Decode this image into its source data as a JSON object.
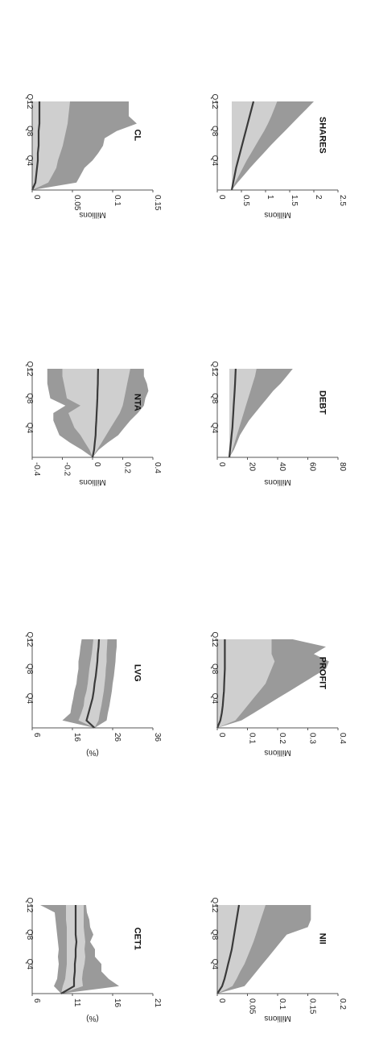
{
  "colors": {
    "outer_band": "#9a9a9a",
    "inner_band": "#cfcfcf",
    "median": "#3a3a3a",
    "axis": "#555555"
  },
  "chart_data": [
    {
      "type": "area",
      "title": "CET1",
      "ylabel": "(%)",
      "ylim": [
        6,
        21
      ],
      "yticks": [
        "6",
        "11",
        "16",
        "21"
      ],
      "xticks": [
        "Q4",
        "Q8",
        "Q12"
      ],
      "x": [
        0,
        1,
        2,
        3,
        4,
        5,
        6,
        7,
        8,
        9,
        10,
        11,
        12
      ],
      "outer_low": [
        9.6,
        8.7,
        9.1,
        9.2,
        9.3,
        9.2,
        9.3,
        9.2,
        9.1,
        9.0,
        8.9,
        8.8,
        7.0
      ],
      "inner_low": [
        9.6,
        9.8,
        10.1,
        10.2,
        10.3,
        10.3,
        10.3,
        10.3,
        10.3,
        10.3,
        10.2,
        10.2,
        10.2
      ],
      "median": [
        9.6,
        11.2,
        11.2,
        11.3,
        11.3,
        11.4,
        11.4,
        11.5,
        11.4,
        11.4,
        11.4,
        11.4,
        11.4
      ],
      "inner_high": [
        9.6,
        12.3,
        12.2,
        12.3,
        12.5,
        12.6,
        12.5,
        12.6,
        12.5,
        12.4,
        12.4,
        12.4,
        12.4
      ],
      "outer_high": [
        9.6,
        16.8,
        15.5,
        14.6,
        14.6,
        13.8,
        13.8,
        13.2,
        13.6,
        13.2,
        13.1,
        12.8,
        12.7
      ]
    },
    {
      "type": "area",
      "title": "LVG",
      "ylabel": "(%)",
      "ylim": [
        6,
        36
      ],
      "yticks": [
        "6",
        "16",
        "26",
        "36"
      ],
      "xticks": [
        "Q4",
        "Q8",
        "Q12"
      ],
      "x": [
        0,
        1,
        2,
        3,
        4,
        5,
        6,
        7,
        8,
        9,
        10,
        11,
        12
      ],
      "outer_low": [
        21.5,
        13.5,
        15.5,
        15.8,
        16.2,
        16.5,
        17.0,
        17.2,
        17.5,
        17.5,
        17.8,
        18.0,
        18.3
      ],
      "inner_low": [
        21.5,
        17.5,
        18.2,
        18.8,
        19.0,
        19.5,
        19.8,
        20.0,
        20.2,
        20.5,
        20.8,
        21.0,
        21.2
      ],
      "median": [
        21.5,
        19.5,
        20.0,
        20.5,
        21.0,
        21.3,
        21.5,
        21.8,
        22.0,
        22.2,
        22.3,
        22.5,
        22.6
      ],
      "inner_high": [
        21.5,
        22.5,
        22.8,
        23.2,
        23.5,
        23.8,
        24.0,
        24.2,
        24.3,
        24.5,
        24.5,
        24.6,
        24.7
      ],
      "outer_high": [
        21.5,
        24.5,
        24.8,
        25.2,
        25.5,
        25.8,
        26.0,
        26.3,
        26.5,
        26.7,
        26.8,
        27.0,
        27.0
      ]
    },
    {
      "type": "area",
      "title": "NTA",
      "ylabel": "Millions",
      "ylim": [
        -0.4,
        0.4
      ],
      "yticks": [
        "-0.4",
        "-0.2",
        "0",
        "0.2",
        "0.4"
      ],
      "xticks": [
        "Q4",
        "Q8",
        "Q12"
      ],
      "x": [
        0,
        1,
        2,
        3,
        4,
        5,
        6,
        7,
        8,
        9,
        10,
        11,
        12
      ],
      "outer_low": [
        0,
        -0.07,
        -0.15,
        -0.22,
        -0.24,
        -0.26,
        -0.26,
        -0.18,
        -0.28,
        -0.29,
        -0.3,
        -0.3,
        -0.3
      ],
      "inner_low": [
        0,
        -0.02,
        -0.05,
        -0.08,
        -0.12,
        -0.14,
        -0.16,
        -0.08,
        -0.17,
        -0.18,
        -0.19,
        -0.2,
        -0.2
      ],
      "median": [
        0,
        0.01,
        0.015,
        0.02,
        0.022,
        0.025,
        0.027,
        0.03,
        0.032,
        0.033,
        0.035,
        0.036,
        0.037
      ],
      "inner_high": [
        0,
        0.03,
        0.06,
        0.09,
        0.12,
        0.15,
        0.18,
        0.2,
        0.21,
        0.22,
        0.23,
        0.24,
        0.25
      ],
      "outer_high": [
        0,
        0.04,
        0.1,
        0.17,
        0.21,
        0.25,
        0.3,
        0.34,
        0.35,
        0.37,
        0.36,
        0.34,
        0.34
      ]
    },
    {
      "type": "area",
      "title": "CL",
      "ylabel": "Millions",
      "ylim": [
        0,
        0.15
      ],
      "yticks": [
        "0",
        "0.05",
        "0.1",
        "0.15"
      ],
      "xticks": [
        "Q4",
        "Q8",
        "Q12"
      ],
      "x": [
        0,
        1,
        2,
        3,
        4,
        5,
        6,
        7,
        8,
        9,
        10,
        11,
        12
      ],
      "outer_low": [
        0,
        0,
        0,
        0,
        0,
        0,
        0,
        0,
        0,
        0,
        0,
        0,
        0
      ],
      "inner_low": [
        0,
        0,
        0,
        0,
        0,
        0,
        0,
        0,
        0,
        0,
        0,
        0,
        0
      ],
      "median": [
        0,
        0.004,
        0.005,
        0.006,
        0.007,
        0.007,
        0.008,
        0.008,
        0.008,
        0.009,
        0.009,
        0.009,
        0.009
      ],
      "inner_high": [
        0,
        0.02,
        0.025,
        0.03,
        0.032,
        0.035,
        0.038,
        0.04,
        0.042,
        0.044,
        0.045,
        0.046,
        0.047
      ],
      "outer_high": [
        0,
        0.055,
        0.06,
        0.065,
        0.075,
        0.082,
        0.088,
        0.09,
        0.105,
        0.13,
        0.12,
        0.12,
        0.12
      ]
    },
    {
      "type": "area",
      "title": "NII",
      "ylabel": "Millions",
      "ylim": [
        0,
        0.2
      ],
      "yticks": [
        "0",
        "0.05",
        "0.1",
        "0.15",
        "0.2"
      ],
      "xticks": [
        "Q4",
        "Q8",
        "Q12"
      ],
      "x": [
        0,
        1,
        2,
        3,
        4,
        5,
        6,
        7,
        8,
        9,
        10,
        11,
        12
      ],
      "outer_low": [
        0,
        0,
        0,
        0,
        0,
        0,
        0,
        0,
        0,
        0,
        0,
        0,
        0
      ],
      "inner_low": [
        0,
        0,
        0,
        0,
        0,
        0,
        0,
        0,
        0,
        0,
        0,
        0,
        0
      ],
      "median": [
        0,
        0.008,
        0.012,
        0.015,
        0.018,
        0.021,
        0.024,
        0.026,
        0.028,
        0.03,
        0.032,
        0.034,
        0.036
      ],
      "inner_high": [
        0,
        0.025,
        0.032,
        0.038,
        0.045,
        0.05,
        0.055,
        0.06,
        0.064,
        0.068,
        0.072,
        0.076,
        0.08
      ],
      "outer_high": [
        0,
        0.045,
        0.055,
        0.065,
        0.075,
        0.085,
        0.095,
        0.105,
        0.115,
        0.15,
        0.155,
        0.155,
        0.155
      ]
    },
    {
      "type": "area",
      "title": "PROFIT",
      "ylabel": "Millions",
      "ylim": [
        0,
        0.4
      ],
      "yticks": [
        "0",
        "0.1",
        "0.2",
        "0.3",
        "0.4"
      ],
      "xticks": [
        "Q4",
        "Q8",
        "Q12"
      ],
      "x": [
        0,
        1,
        2,
        3,
        4,
        5,
        6,
        7,
        8,
        9,
        10,
        11,
        12
      ],
      "outer_low": [
        0,
        0,
        0,
        0,
        0,
        0,
        0,
        0,
        0,
        0,
        0,
        0,
        0
      ],
      "inner_low": [
        0,
        0,
        0,
        0,
        0,
        0,
        0,
        0,
        0,
        0,
        0,
        0,
        0
      ],
      "median": [
        0,
        0.01,
        0.015,
        0.018,
        0.02,
        0.022,
        0.023,
        0.024,
        0.025,
        0.025,
        0.025,
        0.025,
        0.025
      ],
      "inner_high": [
        0,
        0.06,
        0.08,
        0.1,
        0.12,
        0.14,
        0.16,
        0.17,
        0.18,
        0.19,
        0.18,
        0.18,
        0.18
      ],
      "outer_high": [
        0,
        0.08,
        0.12,
        0.16,
        0.2,
        0.24,
        0.28,
        0.32,
        0.36,
        0.37,
        0.32,
        0.36,
        0.25
      ]
    },
    {
      "type": "area",
      "title": "DEBT",
      "ylabel": "Millions",
      "ylim": [
        0,
        80
      ],
      "yticks": [
        "0",
        "20",
        "40",
        "60",
        "80"
      ],
      "xticks": [
        "Q4",
        "Q8",
        "Q12"
      ],
      "x": [
        0,
        1,
        2,
        3,
        4,
        5,
        6,
        7,
        8,
        9,
        10,
        11,
        12
      ],
      "outer_low": [
        8,
        8,
        8,
        8,
        8,
        8,
        8,
        8,
        8,
        8,
        8,
        8,
        8
      ],
      "inner_low": [
        8,
        8,
        8,
        8,
        8,
        8,
        8,
        8,
        8,
        8,
        8,
        8,
        8
      ],
      "median": [
        8,
        8.5,
        9,
        9.5,
        10,
        10.3,
        10.6,
        10.9,
        11.2,
        11.5,
        11.8,
        12,
        12.2
      ],
      "inner_high": [
        8,
        10,
        11.5,
        13,
        14.5,
        16,
        17.5,
        19,
        20.5,
        22,
        23.5,
        25,
        26
      ],
      "outer_high": [
        8,
        11,
        13,
        15,
        18,
        21,
        25,
        29,
        33,
        37,
        42,
        46,
        50
      ]
    },
    {
      "type": "area",
      "title": "SHARES",
      "ylabel": "Millions",
      "ylim": [
        0,
        2.5
      ],
      "yticks": [
        "0",
        "0.5",
        "1",
        "1.5",
        "2",
        "2.5"
      ],
      "xticks": [
        "Q4",
        "Q8",
        "Q12"
      ],
      "x": [
        0,
        1,
        2,
        3,
        4,
        5,
        6,
        7,
        8,
        9,
        10,
        11,
        12
      ],
      "outer_low": [
        0.3,
        0.3,
        0.3,
        0.3,
        0.3,
        0.3,
        0.3,
        0.3,
        0.3,
        0.3,
        0.3,
        0.3,
        0.3
      ],
      "inner_low": [
        0.3,
        0.3,
        0.3,
        0.3,
        0.3,
        0.3,
        0.3,
        0.3,
        0.3,
        0.3,
        0.3,
        0.3,
        0.3
      ],
      "median": [
        0.3,
        0.33,
        0.36,
        0.39,
        0.43,
        0.47,
        0.51,
        0.55,
        0.59,
        0.63,
        0.67,
        0.71,
        0.75
      ],
      "inner_high": [
        0.3,
        0.37,
        0.45,
        0.53,
        0.61,
        0.7,
        0.79,
        0.88,
        0.97,
        1.05,
        1.12,
        1.18,
        1.24
      ],
      "outer_high": [
        0.3,
        0.42,
        0.55,
        0.68,
        0.82,
        0.96,
        1.1,
        1.25,
        1.4,
        1.55,
        1.7,
        1.85,
        2.0
      ]
    }
  ]
}
